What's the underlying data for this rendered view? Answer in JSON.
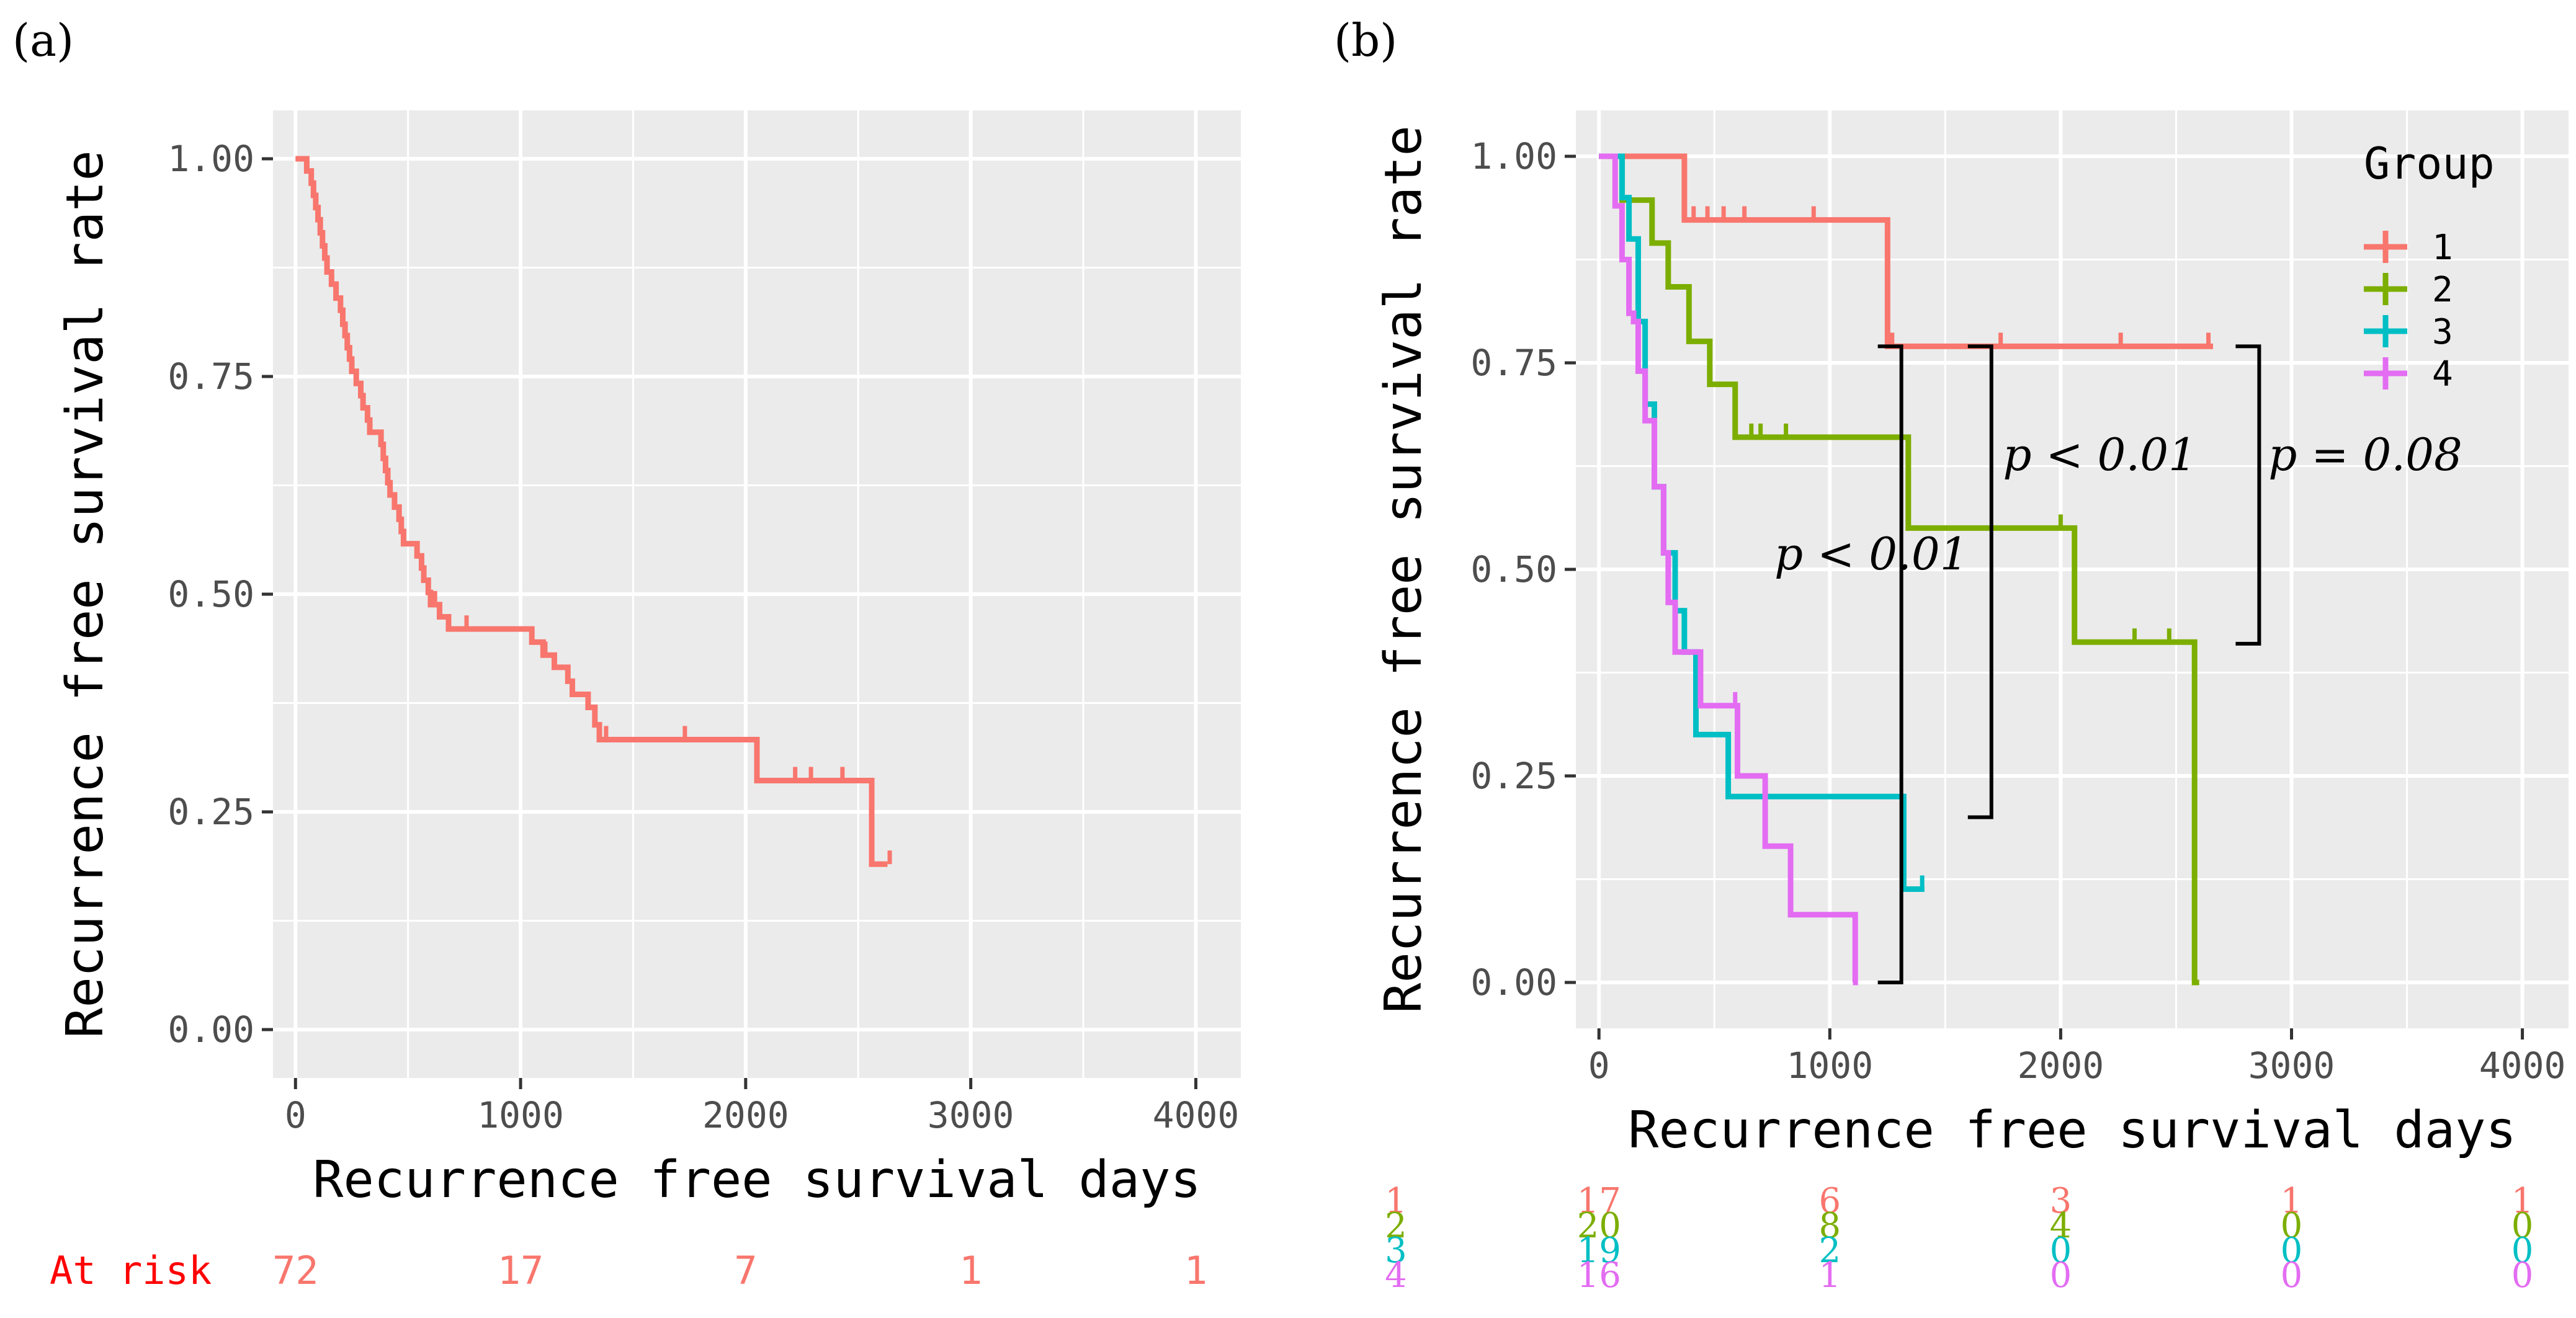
{
  "chart_data": [
    {
      "panel_label": "(a)",
      "type": "line",
      "step": true,
      "xlabel": "Recurrence free survival days",
      "ylabel": "Recurrence free survival rate",
      "xlim": [
        -100,
        4200
      ],
      "ylim": [
        0,
        1
      ],
      "xticks": [
        0,
        1000,
        2000,
        3000,
        4000
      ],
      "xtick_labels": [
        "0",
        "1000",
        "2000",
        "3000",
        "4000"
      ],
      "yticks": [
        0,
        0.25,
        0.5,
        0.75,
        1
      ],
      "ytick_labels": [
        "0.00",
        "0.25",
        "0.50",
        "0.75",
        "1.00"
      ],
      "grid": true,
      "series": [
        {
          "color": "#F8766D",
          "x": [
            0,
            50,
            70,
            80,
            90,
            100,
            110,
            120,
            130,
            140,
            160,
            180,
            200,
            210,
            220,
            230,
            240,
            250,
            270,
            290,
            300,
            320,
            330,
            380,
            390,
            400,
            410,
            420,
            440,
            460,
            470,
            480,
            540,
            560,
            570,
            590,
            600,
            640,
            680,
            740,
            760,
            800,
            1050,
            1100,
            1150,
            1210,
            1230,
            1300,
            1330,
            1350,
            2050,
            2560,
            2580,
            2630
          ],
          "y": [
            1.0,
            0.986,
            0.972,
            0.958,
            0.944,
            0.93,
            0.915,
            0.9,
            0.886,
            0.87,
            0.856,
            0.84,
            0.826,
            0.81,
            0.797,
            0.783,
            0.77,
            0.756,
            0.742,
            0.728,
            0.714,
            0.7,
            0.686,
            0.672,
            0.656,
            0.642,
            0.628,
            0.614,
            0.6,
            0.586,
            0.572,
            0.558,
            0.544,
            0.53,
            0.516,
            0.502,
            0.488,
            0.474,
            0.46,
            0.46,
            0.46,
            0.46,
            0.445,
            0.43,
            0.416,
            0.4,
            0.385,
            0.37,
            0.35,
            0.333,
            0.286,
            0.19,
            0.19,
            0.19
          ]
        }
      ],
      "censor_marks": [
        {
          "x": 620,
          "y": 0.488
        },
        {
          "x": 760,
          "y": 0.46
        },
        {
          "x": 1110,
          "y": 0.43
        },
        {
          "x": 1380,
          "y": 0.333
        },
        {
          "x": 1730,
          "y": 0.333
        },
        {
          "x": 2220,
          "y": 0.286
        },
        {
          "x": 2290,
          "y": 0.286
        },
        {
          "x": 2430,
          "y": 0.286
        },
        {
          "x": 2640,
          "y": 0.19
        }
      ],
      "risk_table": {
        "label": "At risk",
        "times": [
          0,
          1000,
          2000,
          3000,
          4000
        ],
        "counts": [
          "72",
          "17",
          "7",
          "1",
          "1"
        ]
      }
    },
    {
      "panel_label": "(b)",
      "type": "line",
      "step": true,
      "xlabel": "Recurrence free survival days",
      "ylabel": "Recurrence free survival rate",
      "xlim": [
        -100,
        4200
      ],
      "ylim": [
        0,
        1
      ],
      "xticks": [
        0,
        1000,
        2000,
        3000,
        4000
      ],
      "xtick_labels": [
        "0",
        "1000",
        "2000",
        "3000",
        "4000"
      ],
      "yticks": [
        0,
        0.25,
        0.5,
        0.75,
        1
      ],
      "ytick_labels": [
        "0.00",
        "0.25",
        "0.50",
        "0.75",
        "1.00"
      ],
      "grid": true,
      "legend": {
        "title": "Group",
        "position": "top-right",
        "entries": [
          "1",
          "2",
          "3",
          "4"
        ]
      },
      "series": [
        {
          "name": "1",
          "color": "#F8766D",
          "x": [
            0,
            370,
            1250,
            2660
          ],
          "y": [
            1.0,
            0.923,
            0.77,
            0.77
          ],
          "censor_x": [
            410,
            470,
            540,
            630,
            930,
            1270,
            1740,
            2260,
            2640
          ]
        },
        {
          "name": "2",
          "color": "#7CAE00",
          "x": [
            0,
            100,
            230,
            300,
            390,
            480,
            590,
            1340,
            2060,
            2580,
            2600
          ],
          "y": [
            1.0,
            0.947,
            0.895,
            0.842,
            0.776,
            0.724,
            0.66,
            0.55,
            0.412,
            0.0,
            0.0
          ],
          "censor_x": [
            660,
            700,
            810,
            2000,
            2320,
            2470
          ]
        },
        {
          "name": "3",
          "color": "#00BFC4",
          "x": [
            0,
            100,
            130,
            170,
            200,
            240,
            280,
            330,
            370,
            420,
            480,
            560,
            1320,
            1410
          ],
          "y": [
            1.0,
            0.95,
            0.9,
            0.8,
            0.7,
            0.6,
            0.52,
            0.45,
            0.4,
            0.3,
            0.3,
            0.225,
            0.113,
            0.113
          ],
          "censor_x": [
            1400
          ]
        },
        {
          "name": "4",
          "color": "#E36CF2",
          "x": [
            0,
            70,
            100,
            130,
            150,
            170,
            200,
            240,
            280,
            300,
            330,
            440,
            600,
            720,
            830,
            1110,
            1100
          ],
          "y": [
            1.0,
            0.94,
            0.875,
            0.81,
            0.8,
            0.74,
            0.68,
            0.6,
            0.52,
            0.46,
            0.4,
            0.335,
            0.25,
            0.165,
            0.082,
            0.0,
            0.0
          ],
          "censor_x": [
            590
          ]
        }
      ],
      "annotations": [
        {
          "text": "p < 0.01",
          "from": [
            1310,
            0.77
          ],
          "to": [
            1310,
            0.0
          ],
          "label_x": 760,
          "label_y": 0.5
        },
        {
          "text": "p < 0.01",
          "from": [
            1700,
            0.77
          ],
          "to": [
            1700,
            0.2
          ],
          "label_x": 1750,
          "label_y": 0.62
        },
        {
          "text": "p = 0.08",
          "from": [
            2860,
            0.77
          ],
          "to": [
            2860,
            0.41
          ],
          "label_x": 2900,
          "label_y": 0.62
        }
      ],
      "risk_table": {
        "times": [
          0,
          1000,
          2000,
          3000,
          4000
        ],
        "groups": [
          {
            "label": "1",
            "color": "#F8766D",
            "counts": [
              "17",
              "6",
              "3",
              "1",
              "1"
            ]
          },
          {
            "label": "2",
            "color": "#7CAE00",
            "counts": [
              "20",
              "8",
              "4",
              "0",
              "0"
            ]
          },
          {
            "label": "3",
            "color": "#00BFC4",
            "counts": [
              "19",
              "2",
              "0",
              "0",
              "0"
            ]
          },
          {
            "label": "4",
            "color": "#E36CF2",
            "counts": [
              "16",
              "1",
              "0",
              "0",
              "0"
            ]
          }
        ]
      }
    }
  ]
}
